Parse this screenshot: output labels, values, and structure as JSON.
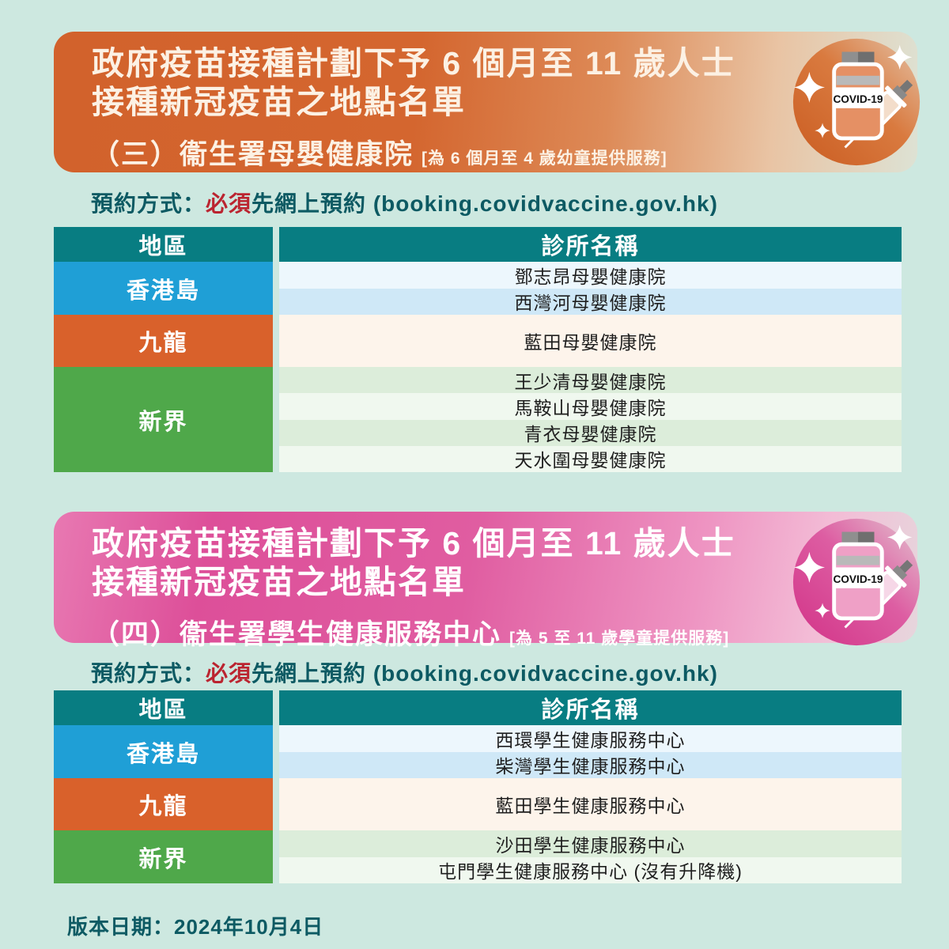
{
  "sections": [
    {
      "theme": "orange",
      "title_line1": "政府疫苗接種計劃下予 6 個月至 11 歲人士",
      "title_line2": "接種新冠疫苗之地點名單",
      "subtitle": "（三）衞生署母嬰健康院",
      "subtitle_note": "[為 6 個月至 4 歲幼童提供服務]",
      "booking_prefix": "預約方式：",
      "booking_emphasis": "必須",
      "booking_suffix": "先網上預約 ",
      "booking_url": "(booking.covidvaccine.gov.hk)",
      "icon_label": "COVID-19",
      "table": {
        "col1": "地區",
        "col2": "診所名稱",
        "groups": [
          {
            "region": "香港島",
            "color": "blue",
            "clinics": [
              "鄧志昂母嬰健康院",
              "西灣河母嬰健康院"
            ]
          },
          {
            "region": "九龍",
            "color": "orange",
            "clinics": [
              "藍田母嬰健康院"
            ]
          },
          {
            "region": "新界",
            "color": "green",
            "clinics": [
              "王少清母嬰健康院",
              "馬鞍山母嬰健康院",
              "青衣母嬰健康院",
              "天水圍母嬰健康院"
            ]
          }
        ]
      }
    },
    {
      "theme": "pink",
      "title_line1": "政府疫苗接種計劃下予 6 個月至 11 歲人士",
      "title_line2": "接種新冠疫苗之地點名單",
      "subtitle": "（四）衞生署學生健康服務中心",
      "subtitle_note": "[為 5 至 11 歲學童提供服務]",
      "booking_prefix": "預約方式：",
      "booking_emphasis": "必須",
      "booking_suffix": "先網上預約 ",
      "booking_url": "(booking.covidvaccine.gov.hk)",
      "icon_label": "COVID-19",
      "table": {
        "col1": "地區",
        "col2": "診所名稱",
        "groups": [
          {
            "region": "香港島",
            "color": "blue",
            "clinics": [
              "西環學生健康服務中心",
              "柴灣學生健康服務中心"
            ]
          },
          {
            "region": "九龍",
            "color": "orange",
            "clinics": [
              "藍田學生健康服務中心"
            ]
          },
          {
            "region": "新界",
            "color": "green",
            "clinics": [
              "沙田學生健康服務中心",
              "屯門學生健康服務中心 (沒有升降機)"
            ]
          }
        ]
      }
    }
  ],
  "footer": {
    "version_label": "版本日期：2024年10月4日"
  },
  "colors": {
    "background": "#cde8e0",
    "table_header_teal": "#087d82",
    "region_blue": "#1f9fd6",
    "region_orange": "#d9612b",
    "region_green": "#4fa84a",
    "banner_orange": "#d2622c",
    "banner_pink": "#dd4f99",
    "emphasis_red": "#bb2430",
    "text_teal": "#0d5a63"
  }
}
